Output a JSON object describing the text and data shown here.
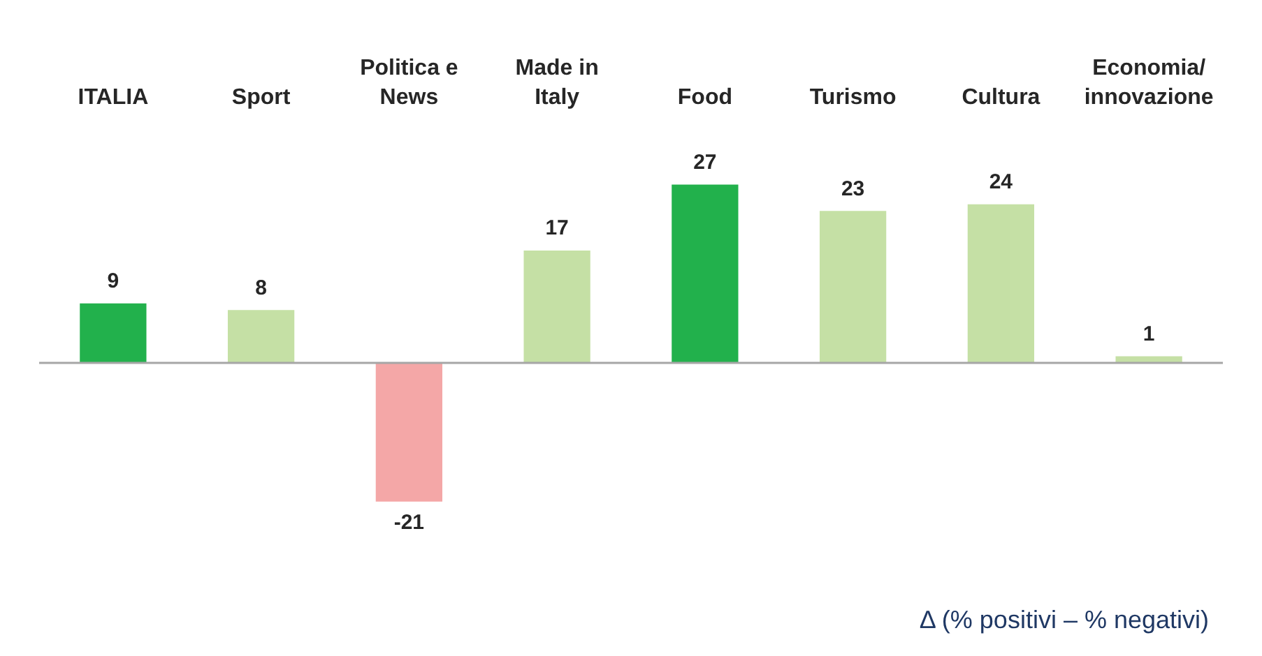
{
  "chart_data": {
    "type": "bar",
    "categories": [
      "ITALIA",
      "Sport",
      "Politica e News",
      "Made in Italy",
      "Food",
      "Turismo",
      "Cultura",
      "Economia/ innovazione"
    ],
    "values": [
      9,
      8,
      -21,
      17,
      27,
      23,
      24,
      1
    ],
    "colors": [
      "#22b14c",
      "#c5e0a5",
      "#f4a7a7",
      "#c5e0a5",
      "#22b14c",
      "#c5e0a5",
      "#c5e0a5",
      "#c5e0a5"
    ],
    "data_labels": true,
    "legend": false,
    "annotations": [
      "Δ (% positivi – % negativi)"
    ]
  }
}
